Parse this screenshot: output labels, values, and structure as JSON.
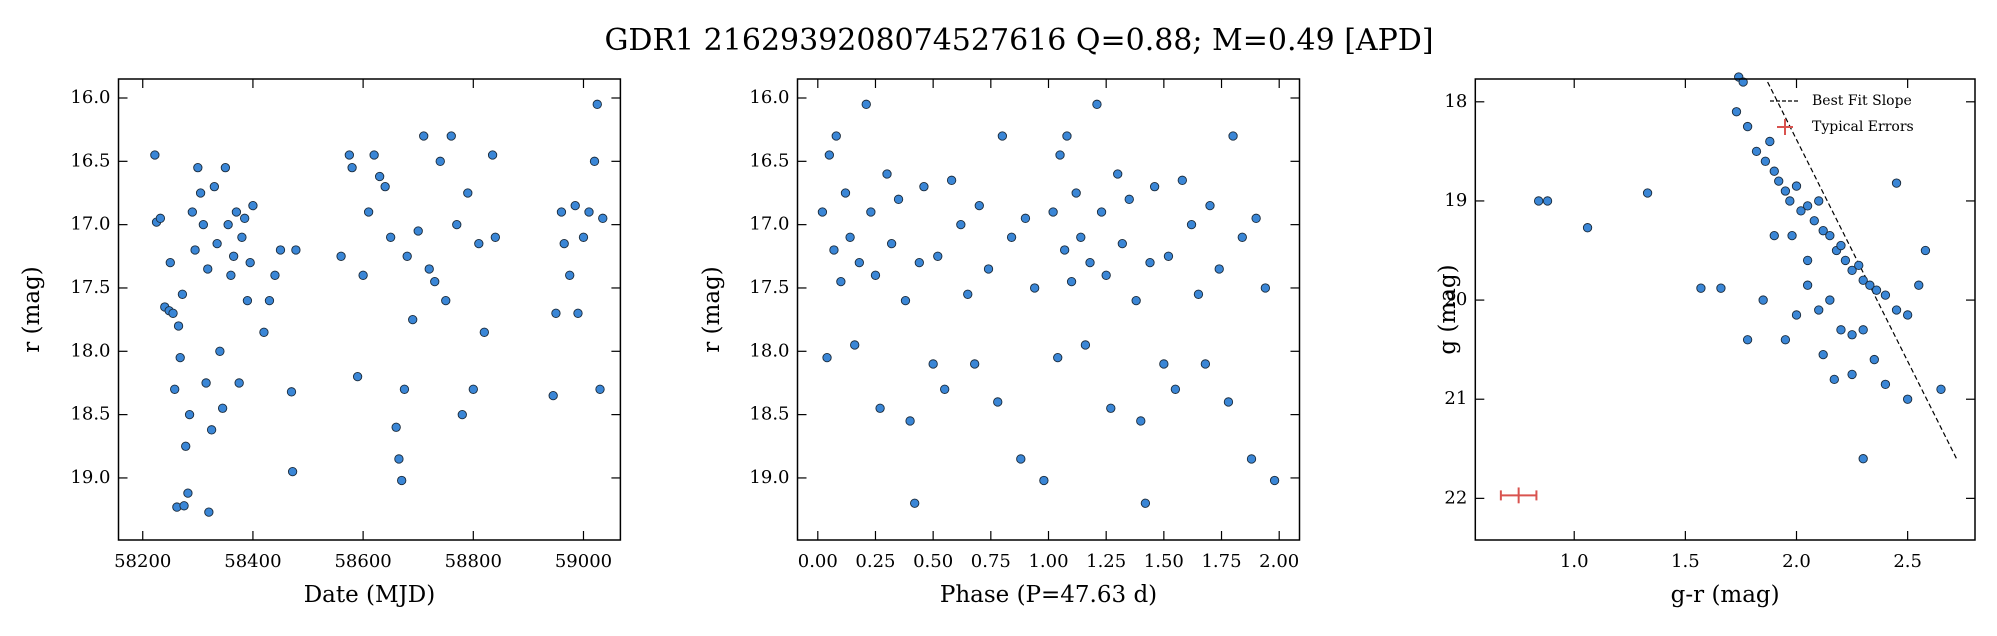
{
  "title": "GDR1 2162939208074527616  Q=0.88; M=0.49 [APD]",
  "chart_data": [
    {
      "type": "scatter",
      "xlabel": "Date (MJD)",
      "ylabel": "r (mag)",
      "color": "#3a86d6",
      "xlim": [
        58156,
        59067
      ],
      "ylim": [
        19.49,
        15.85
      ],
      "xticks": [
        58200,
        58400,
        58600,
        58800,
        59000
      ],
      "yticks": [
        {
          "value": 16.0,
          "label": "16.0"
        },
        {
          "value": 16.5,
          "label": "16.5"
        },
        {
          "value": 17.0,
          "label": "17.0"
        },
        {
          "value": 17.5,
          "label": "17.5"
        },
        {
          "value": 18.0,
          "label": "18.0"
        },
        {
          "value": 18.5,
          "label": "18.5"
        },
        {
          "value": 19.0,
          "label": "19.0"
        }
      ],
      "x": [
        58222,
        58225,
        58232,
        58240,
        58248,
        58250,
        58255,
        58258,
        58262,
        58265,
        58268,
        58272,
        58275,
        58278,
        58282,
        58285,
        58290,
        58295,
        58300,
        58305,
        58310,
        58315,
        58318,
        58320,
        58325,
        58330,
        58335,
        58340,
        58345,
        58350,
        58355,
        58360,
        58365,
        58370,
        58375,
        58380,
        58385,
        58390,
        58395,
        58400,
        58420,
        58430,
        58440,
        58450,
        58470,
        58472,
        58478,
        58560,
        58575,
        58580,
        58590,
        58600,
        58610,
        58620,
        58630,
        58640,
        58650,
        58660,
        58665,
        58670,
        58675,
        58680,
        58690,
        58700,
        58710,
        58720,
        58730,
        58740,
        58750,
        58760,
        58770,
        58780,
        58790,
        58800,
        58810,
        58820,
        58835,
        58840,
        58945,
        58950,
        58960,
        58965,
        58975,
        58985,
        58990,
        59000,
        59010,
        59020,
        59025,
        59030,
        59035
      ],
      "values": [
        16.45,
        16.98,
        16.95,
        17.65,
        17.68,
        17.3,
        17.7,
        18.3,
        19.23,
        17.8,
        18.05,
        17.55,
        19.22,
        18.75,
        19.12,
        18.5,
        16.9,
        17.2,
        16.55,
        16.75,
        17.0,
        18.25,
        17.35,
        19.27,
        18.62,
        16.7,
        17.15,
        18.0,
        18.45,
        16.55,
        17.0,
        17.4,
        17.25,
        16.9,
        18.25,
        17.1,
        16.95,
        17.6,
        17.3,
        16.85,
        17.85,
        17.6,
        17.4,
        17.2,
        18.32,
        18.95,
        17.2,
        17.25,
        16.45,
        16.55,
        18.2,
        17.4,
        16.9,
        16.45,
        16.62,
        16.7,
        17.1,
        18.6,
        18.85,
        19.02,
        18.3,
        17.25,
        17.75,
        17.05,
        16.3,
        17.35,
        17.45,
        16.5,
        17.6,
        16.3,
        17.0,
        18.5,
        16.75,
        18.3,
        17.15,
        17.85,
        16.45,
        17.1,
        18.35,
        17.7,
        16.9,
        17.15,
        17.4,
        16.85,
        17.7,
        17.1,
        16.9,
        16.5,
        16.05,
        18.3,
        16.95
      ]
    },
    {
      "type": "scatter",
      "xlabel": "Phase (P=47.63 d)",
      "ylabel": "r (mag)",
      "color": "#3a86d6",
      "xlim": [
        -0.088,
        2.088
      ],
      "ylim": [
        19.49,
        15.85
      ],
      "xticks": [
        {
          "value": 0,
          "label": "0.00"
        },
        {
          "value": 0.25,
          "label": "0.25"
        },
        {
          "value": 0.5,
          "label": "0.50"
        },
        {
          "value": 0.75,
          "label": "0.75"
        },
        {
          "value": 1.0,
          "label": "1.00"
        },
        {
          "value": 1.25,
          "label": "1.25"
        },
        {
          "value": 1.5,
          "label": "1.50"
        },
        {
          "value": 1.75,
          "label": "1.75"
        },
        {
          "value": 2.0,
          "label": "2.00"
        }
      ],
      "yticks": [
        {
          "value": 16.0,
          "label": "16.0"
        },
        {
          "value": 16.5,
          "label": "16.5"
        },
        {
          "value": 17.0,
          "label": "17.0"
        },
        {
          "value": 17.5,
          "label": "17.5"
        },
        {
          "value": 18.0,
          "label": "18.0"
        },
        {
          "value": 18.5,
          "label": "18.5"
        },
        {
          "value": 19.0,
          "label": "19.0"
        }
      ],
      "x": [
        0.02,
        0.04,
        0.05,
        0.07,
        0.08,
        0.1,
        0.12,
        0.14,
        0.16,
        0.18,
        0.21,
        0.23,
        0.25,
        0.27,
        0.3,
        0.32,
        0.35,
        0.38,
        0.4,
        0.42,
        0.44,
        0.46,
        0.5,
        0.52,
        0.55,
        0.58,
        0.62,
        0.65,
        0.68,
        0.7,
        0.74,
        0.78,
        0.8,
        0.84,
        0.88,
        0.9,
        0.94,
        0.98,
        1.02,
        1.04,
        1.05,
        1.07,
        1.08,
        1.1,
        1.12,
        1.14,
        1.16,
        1.18,
        1.21,
        1.23,
        1.25,
        1.27,
        1.3,
        1.32,
        1.35,
        1.38,
        1.4,
        1.42,
        1.44,
        1.46,
        1.5,
        1.52,
        1.55,
        1.58,
        1.62,
        1.65,
        1.68,
        1.7,
        1.74,
        1.78,
        1.8,
        1.84,
        1.88,
        1.9,
        1.94,
        1.98
      ],
      "values": [
        16.9,
        18.05,
        16.45,
        17.2,
        16.3,
        17.45,
        16.75,
        17.1,
        17.95,
        17.3,
        16.05,
        16.9,
        17.4,
        18.45,
        16.6,
        17.15,
        16.8,
        17.6,
        18.55,
        19.2,
        17.3,
        16.7,
        18.1,
        17.25,
        18.3,
        16.65,
        17.0,
        17.55,
        18.1,
        16.85,
        17.35,
        18.4,
        16.3,
        17.1,
        18.85,
        16.95,
        17.5,
        19.02,
        16.9,
        18.05,
        16.45,
        17.2,
        16.3,
        17.45,
        16.75,
        17.1,
        17.95,
        17.3,
        16.05,
        16.9,
        17.4,
        18.45,
        16.6,
        17.15,
        16.8,
        17.6,
        18.55,
        19.2,
        17.3,
        16.7,
        18.1,
        17.25,
        18.3,
        16.65,
        17.0,
        17.55,
        18.1,
        16.85,
        17.35,
        18.4,
        16.3,
        17.1,
        18.85,
        16.95,
        17.5,
        19.02
      ]
    },
    {
      "type": "scatter",
      "xlabel": "g-r (mag)",
      "ylabel": "g (mag)",
      "color": "#3a86d6",
      "xlim": [
        0.555,
        2.803
      ],
      "ylim": [
        22.42,
        17.77
      ],
      "xticks": [
        {
          "value": 1.0,
          "label": "1.0"
        },
        {
          "value": 1.5,
          "label": "1.5"
        },
        {
          "value": 2.0,
          "label": "2.0"
        },
        {
          "value": 2.5,
          "label": "2.5"
        }
      ],
      "yticks": [
        18,
        19,
        20,
        21,
        22
      ],
      "x": [
        0.84,
        0.88,
        1.06,
        1.33,
        1.57,
        1.66,
        1.78,
        2.3,
        2.45,
        2.65,
        2.5,
        1.74,
        1.76,
        1.73,
        1.78,
        1.82,
        1.86,
        1.88,
        1.9,
        1.92,
        1.95,
        1.97,
        2.0,
        2.02,
        2.05,
        2.08,
        2.1,
        2.12,
        2.15,
        2.18,
        2.2,
        2.22,
        2.25,
        2.28,
        2.3,
        2.33,
        2.36,
        2.4,
        2.45,
        2.5,
        2.55,
        2.58,
        1.98,
        2.05,
        1.9,
        2.2,
        2.25,
        2.3,
        2.12,
        2.17,
        2.25,
        2.35,
        2.4,
        2.1,
        1.85,
        1.95,
        2.0,
        2.05,
        2.15
      ],
      "values": [
        19.0,
        19.0,
        19.27,
        18.92,
        19.88,
        19.88,
        20.4,
        21.6,
        18.82,
        20.9,
        21.0,
        17.75,
        17.8,
        18.1,
        18.25,
        18.5,
        18.6,
        18.4,
        18.7,
        18.8,
        18.9,
        19.0,
        18.85,
        19.1,
        19.05,
        19.2,
        19.0,
        19.3,
        19.35,
        19.5,
        19.45,
        19.6,
        19.7,
        19.65,
        19.8,
        19.85,
        19.9,
        19.95,
        20.1,
        20.15,
        19.85,
        19.5,
        19.35,
        19.6,
        19.35,
        20.3,
        20.35,
        20.3,
        20.55,
        20.8,
        20.75,
        20.6,
        20.85,
        20.1,
        20.0,
        20.4,
        20.15,
        19.85,
        20.0
      ],
      "fit_line": {
        "name": "Best Fit Slope",
        "color": "#000000",
        "x": [
          1.87,
          2.72
        ],
        "values": [
          17.8,
          21.6
        ]
      },
      "errorbar": {
        "name": "Typical Errors",
        "color": "#d9534f",
        "x": 0.75,
        "y": 21.97,
        "xerr": 0.08,
        "yerr": 0.08
      },
      "legend": "upper right"
    }
  ]
}
